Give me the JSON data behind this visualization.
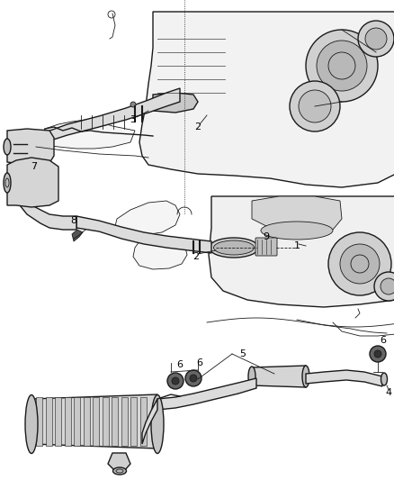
{
  "bg_color": "#ffffff",
  "fig_width": 4.38,
  "fig_height": 5.33,
  "dpi": 100,
  "line_color": "#1a1a1a",
  "label_color": "#000000",
  "gray_light": "#e8e8e8",
  "gray_mid": "#c8c8c8",
  "gray_dark": "#888888",
  "engine_fill": "#d8d8d8"
}
